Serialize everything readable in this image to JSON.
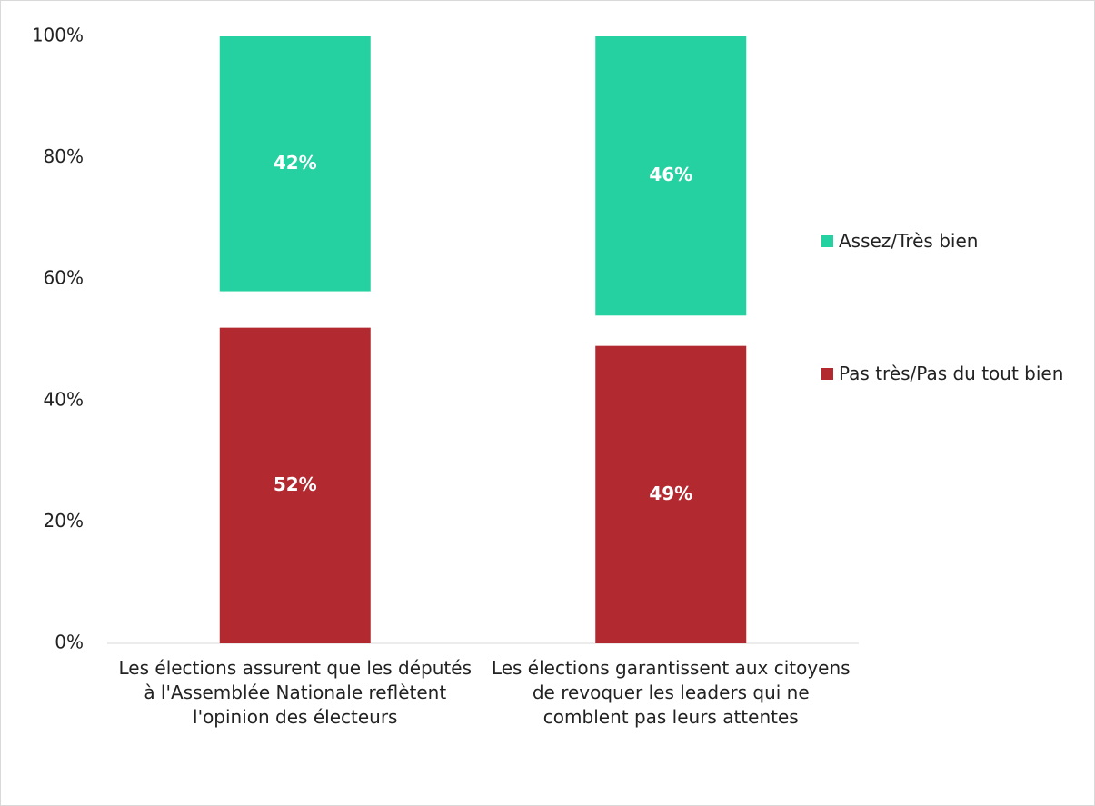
{
  "chart_data": {
    "type": "stacked_bar_percent",
    "categories": [
      "Les élections assurent que les députés à l'Assemblée Nationale reflètent l'opinion des électeurs",
      "Les élections garantissent aux citoyens de revoquer les leaders qui ne comblent pas leurs attentes"
    ],
    "series": [
      {
        "name": "Pas très/Pas du tout bien",
        "color": "#b22930",
        "values": [
          52,
          49
        ],
        "value_labels": [
          "52%",
          "49%"
        ]
      },
      {
        "name": "Assez/Très bien",
        "color": "#26d1a1",
        "values": [
          42,
          46
        ],
        "value_labels": [
          "42%",
          "46%"
        ]
      }
    ],
    "ylim": [
      0,
      100
    ],
    "yticks": [
      {
        "value": 0,
        "label": "0%"
      },
      {
        "value": 20,
        "label": "20%"
      },
      {
        "value": 40,
        "label": "40%"
      },
      {
        "value": 60,
        "label": "60%"
      },
      {
        "value": 80,
        "label": "80%"
      },
      {
        "value": 100,
        "label": "100%"
      }
    ],
    "legend": "right"
  }
}
